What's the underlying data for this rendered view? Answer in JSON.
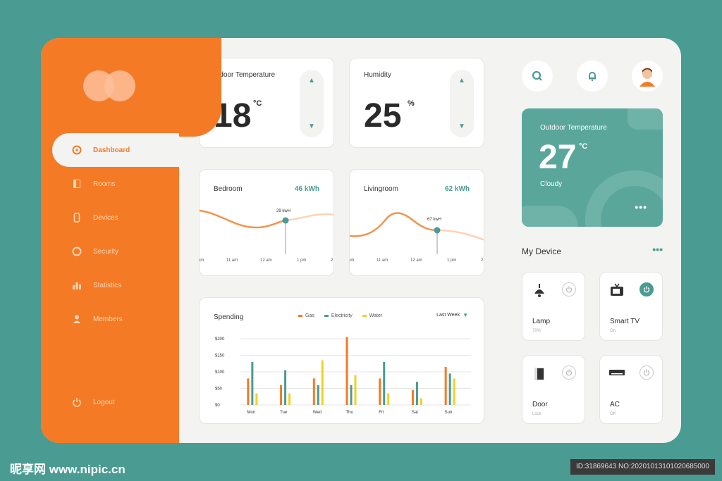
{
  "nav": {
    "items": [
      {
        "label": "Dashboard",
        "icon": "dashboard-icon",
        "active": true
      },
      {
        "label": "Rooms",
        "icon": "door-icon"
      },
      {
        "label": "Devices",
        "icon": "phone-icon"
      },
      {
        "label": "Security",
        "icon": "shield-icon"
      },
      {
        "label": "Statistics",
        "icon": "chart-icon"
      },
      {
        "label": "Members",
        "icon": "user-icon"
      }
    ],
    "logout": "Logout"
  },
  "indoor": {
    "title": "Indoor Temperature",
    "value": "18",
    "unit": "°C"
  },
  "humidity": {
    "title": "Humidity",
    "value": "25",
    "unit": "%"
  },
  "bedroom": {
    "title": "Bedroom",
    "kwh": "46 kWh",
    "marker": "29 kwH",
    "ticks": [
      "am",
      "11 am",
      "12 am",
      "1 pm",
      "2"
    ]
  },
  "livingroom": {
    "title": "Livingroom",
    "kwh": "62 kWh",
    "marker": "67 kwH",
    "ticks": [
      "pm",
      "11 am",
      "12 am",
      "1 pm",
      "2"
    ]
  },
  "spending": {
    "title": "Spending",
    "period": "Last Week",
    "legend": [
      {
        "name": "Gas",
        "color": "#f47a25"
      },
      {
        "name": "Electricity",
        "color": "#4a9b91"
      },
      {
        "name": "Water",
        "color": "#f2d024"
      }
    ]
  },
  "chart_data": {
    "type": "bar",
    "categories": [
      "Mon",
      "Tue",
      "Wed",
      "Thu",
      "Fri",
      "Sat",
      "Sun"
    ],
    "yticks": [
      "$200",
      "$150",
      "$100",
      "$50",
      "$0"
    ],
    "ylim": [
      0,
      200
    ],
    "series": [
      {
        "name": "Gas",
        "values": [
          80,
          60,
          80,
          205,
          80,
          45,
          115
        ]
      },
      {
        "name": "Electricity",
        "values": [
          130,
          105,
          60,
          60,
          130,
          70,
          95
        ]
      },
      {
        "name": "Water",
        "values": [
          35,
          35,
          135,
          90,
          35,
          20,
          80
        ]
      }
    ]
  },
  "outdoor": {
    "title": "Outdoor Temperature",
    "value": "27",
    "unit": "°C",
    "condition": "Cloudy",
    "more": "•••"
  },
  "mydevice": {
    "title": "My Device",
    "more": "•••"
  },
  "devices": [
    {
      "name": "Lamp",
      "status": "70%",
      "icon": "lamp-icon",
      "on": false
    },
    {
      "name": "Smart TV",
      "status": "On",
      "icon": "tv-icon",
      "on": true
    },
    {
      "name": "Door",
      "status": "Lock",
      "icon": "door-icon",
      "on": false
    },
    {
      "name": "AC",
      "status": "Off",
      "icon": "ac-icon",
      "on": false
    }
  ],
  "watermark": "昵享网 www.nipic.cn",
  "id_text": "ID:31869643 NO:20201013101020685000"
}
